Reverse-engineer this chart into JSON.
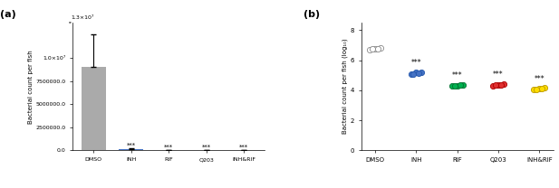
{
  "panel_a": {
    "categories": [
      "DMSO",
      "INH",
      "RIF",
      "Q203",
      "INH&RIF"
    ],
    "bar_means": [
      9000000,
      150000,
      15000,
      12000,
      10000
    ],
    "bar_errors": [
      3500000,
      60000,
      5000,
      4000,
      3000
    ],
    "bar_colors": [
      "#aaaaaa",
      "#4472c4",
      "#c0c0c0",
      "#c0c0c0",
      "#c0c0c0"
    ],
    "ylabel": "Bacterial count per fish",
    "ylim": [
      0,
      13800000.0
    ],
    "yticks": [
      0,
      2500000,
      5000000,
      7500000,
      10000000.0
    ],
    "ytick_labels": [
      "0.0",
      "2500000.0",
      "5000000.0",
      "7500000.0",
      "1.0×10⁷"
    ],
    "sig_labels": [
      "",
      "***",
      "***",
      "***",
      "***"
    ],
    "top_label": "1.3×10⁷"
  },
  "panel_b": {
    "categories": [
      "DMSO",
      "INH",
      "RIF",
      "Q203",
      "INH&RIF"
    ],
    "dot_groups": {
      "DMSO": [
        6.7,
        6.78,
        6.88,
        6.82,
        6.85
      ],
      "INH": [
        5.1,
        5.2,
        5.28,
        5.18,
        5.22
      ],
      "RIF": [
        4.28,
        4.38,
        4.45,
        4.32,
        4.4
      ],
      "Q203": [
        4.3,
        4.42,
        4.48,
        4.35,
        4.45
      ],
      "INH&RIF": [
        4.05,
        4.15,
        4.22,
        4.1,
        4.18
      ]
    },
    "dot_colors": {
      "DMSO": "#ffffff",
      "INH": "#4472c4",
      "RIF": "#00b04f",
      "Q203": "#e03030",
      "INH&RIF": "#ffdd00"
    },
    "dot_edge_colors": {
      "DMSO": "#888888",
      "INH": "#2255aa",
      "RIF": "#007030",
      "Q203": "#aa0000",
      "INH&RIF": "#bb9900"
    },
    "ylabel": "Bacterial count per fish (log₁₀)",
    "ylim": [
      0,
      8.5
    ],
    "yticks": [
      0,
      2,
      4,
      6,
      8
    ],
    "sig_labels": [
      "",
      "***",
      "***",
      "***",
      "***"
    ],
    "sig_y": [
      0,
      5.55,
      4.72,
      4.78,
      4.48
    ]
  }
}
